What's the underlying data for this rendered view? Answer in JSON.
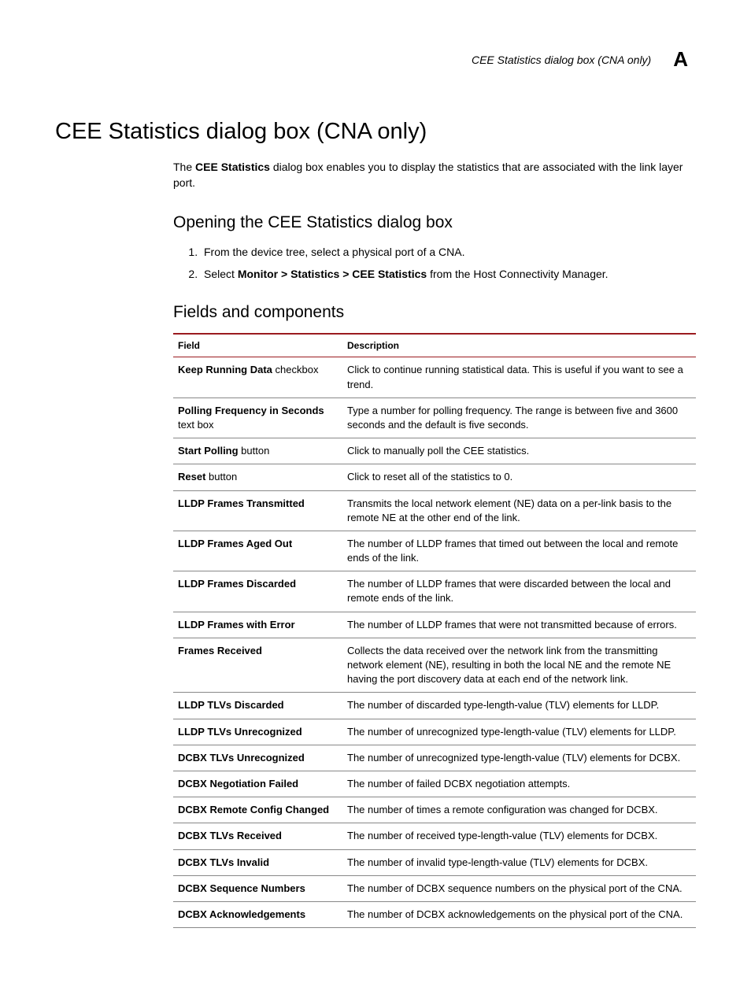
{
  "header": {
    "running_title": "CEE Statistics dialog box (CNA only)",
    "appendix_letter": "A"
  },
  "title": "CEE Statistics dialog box (CNA only)",
  "intro": {
    "prefix": "The ",
    "bold": "CEE Statistics",
    "rest": " dialog box enables you to display the statistics that are associated with the link layer port."
  },
  "section_open": "Opening the CEE Statistics dialog box",
  "steps": [
    {
      "text": "From the device tree, select a physical port of a CNA."
    },
    {
      "prefix": "Select ",
      "bold": "Monitor > Statistics > CEE Statistics",
      "rest": " from the Host Connectivity Manager."
    }
  ],
  "section_fields": "Fields and components",
  "table": {
    "col_field": "Field",
    "col_desc": "Description",
    "rows": [
      {
        "bold": "Keep Running Data",
        "suffix": " checkbox",
        "desc": "Click to continue running statistical data. This is useful if you want to see a trend."
      },
      {
        "bold": "Polling Frequency in Seconds",
        "suffix": " text box",
        "desc": "Type a number for polling frequency. The range is between five and 3600 seconds and the default is five seconds."
      },
      {
        "bold": "Start Polling",
        "suffix": " button",
        "desc": "Click to manually poll the CEE statistics."
      },
      {
        "bold": "Reset",
        "suffix": " button",
        "desc": "Click to reset all of the statistics to 0."
      },
      {
        "bold": "LLDP Frames Transmitted",
        "suffix": "",
        "desc": "Transmits the local network element (NE) data on a per-link basis to the remote NE at the other end of the link."
      },
      {
        "bold": "LLDP Frames Aged Out",
        "suffix": "",
        "desc": "The number of LLDP frames that timed out between the local and remote ends of the link."
      },
      {
        "bold": "LLDP Frames Discarded",
        "suffix": "",
        "desc": "The number of LLDP frames that were discarded between the local and remote ends of the link."
      },
      {
        "bold": "LLDP Frames with Error",
        "suffix": "",
        "desc": "The number of LLDP frames that were not transmitted because of errors."
      },
      {
        "bold": "Frames Received",
        "suffix": "",
        "desc": "Collects the data received over the network link from the transmitting network element (NE), resulting in both the local NE and the remote NE having the port discovery data at each end of the network link."
      },
      {
        "bold": "LLDP TLVs Discarded",
        "suffix": "",
        "desc": "The number of discarded type-length-value (TLV) elements for LLDP."
      },
      {
        "bold": "LLDP TLVs Unrecognized",
        "suffix": "",
        "desc": "The number of unrecognized type-length-value (TLV) elements for LLDP."
      },
      {
        "bold": "DCBX TLVs Unrecognized",
        "suffix": "",
        "desc": "The number of unrecognized type-length-value (TLV) elements for DCBX."
      },
      {
        "bold": "DCBX Negotiation Failed",
        "suffix": "",
        "desc": "The number of failed DCBX negotiation attempts."
      },
      {
        "bold": "DCBX Remote Config Changed",
        "suffix": "",
        "desc": "The number of times a remote configuration was changed for DCBX."
      },
      {
        "bold": "DCBX TLVs Received",
        "suffix": "",
        "desc": "The number of received type-length-value (TLV) elements for DCBX."
      },
      {
        "bold": "DCBX TLVs Invalid",
        "suffix": "",
        "desc": "The number of invalid type-length-value (TLV) elements for DCBX."
      },
      {
        "bold": "DCBX Sequence Numbers",
        "suffix": "",
        "desc": "The number of DCBX sequence numbers on the physical port of the CNA."
      },
      {
        "bold": "DCBX Acknowledgements",
        "suffix": "",
        "desc": "The number of DCBX acknowledgements on the physical port of the CNA."
      }
    ]
  }
}
